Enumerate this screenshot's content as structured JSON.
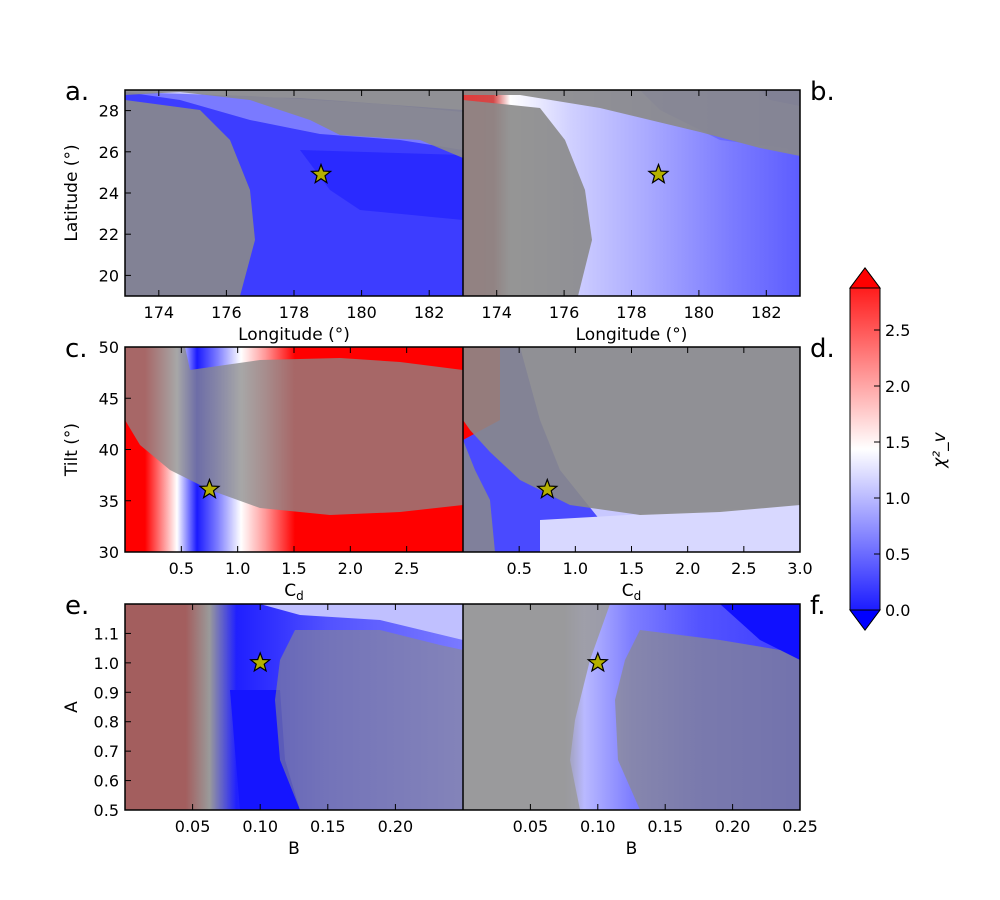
{
  "chart_data": [
    {
      "type": "heatmap",
      "panel": "a.",
      "xlabel": "Longitude (°)",
      "ylabel": "Latitude (°)",
      "xlim": [
        173,
        183
      ],
      "ylim": [
        19,
        29
      ],
      "xticks": [
        174,
        176,
        178,
        180,
        182
      ],
      "xtick_labels": [
        "174",
        "176",
        "178",
        "180",
        "182"
      ],
      "yticks": [
        20,
        22,
        24,
        26,
        28
      ],
      "ytick_labels": [
        "20",
        "22",
        "24",
        "26",
        "28"
      ],
      "marker": {
        "symbol": "star",
        "x": 178.8,
        "y": 24.9,
        "color": "#b5b000"
      }
    },
    {
      "type": "heatmap",
      "panel": "b.",
      "xlabel": "Longitude (°)",
      "ylabel": "",
      "xlim": [
        173,
        183
      ],
      "ylim": [
        19,
        29
      ],
      "xticks": [
        174,
        176,
        178,
        180,
        182
      ],
      "xtick_labels": [
        "174",
        "176",
        "178",
        "180",
        "182"
      ],
      "yticks": [],
      "ytick_labels": [],
      "marker": {
        "symbol": "star",
        "x": 178.8,
        "y": 24.9,
        "color": "#b5b000"
      }
    },
    {
      "type": "heatmap",
      "panel": "c.",
      "xlabel": "C_d",
      "ylabel": "Tilt (°)",
      "xlim": [
        0,
        3.0
      ],
      "ylim": [
        30,
        50
      ],
      "xticks": [
        0.5,
        1.0,
        1.5,
        2.0,
        2.5
      ],
      "xtick_labels": [
        "0.5",
        "1.0",
        "1.5",
        "2.0",
        "2.5"
      ],
      "yticks": [
        30,
        35,
        40,
        45,
        50
      ],
      "ytick_labels": [
        "30",
        "35",
        "40",
        "45",
        "50"
      ],
      "marker": {
        "symbol": "star",
        "x": 0.75,
        "y": 36.1,
        "color": "#b5b000"
      }
    },
    {
      "type": "heatmap",
      "panel": "d.",
      "xlabel": "C_d",
      "ylabel": "",
      "xlim": [
        0,
        3.0
      ],
      "ylim": [
        30,
        50
      ],
      "xticks": [
        0.5,
        1.0,
        1.5,
        2.0,
        2.5,
        3.0
      ],
      "xtick_labels": [
        "0.5",
        "1.0",
        "1.5",
        "2.0",
        "2.5",
        "3.0"
      ],
      "yticks": [],
      "ytick_labels": [],
      "marker": {
        "symbol": "star",
        "x": 0.75,
        "y": 36.1,
        "color": "#b5b000"
      }
    },
    {
      "type": "heatmap",
      "panel": "e.",
      "xlabel": "B",
      "ylabel": "A",
      "xlim": [
        0.0,
        0.25
      ],
      "ylim": [
        0.5,
        1.2
      ],
      "xticks": [
        0.05,
        0.1,
        0.15,
        0.2
      ],
      "xtick_labels": [
        "0.05",
        "0.10",
        "0.15",
        "0.20"
      ],
      "yticks": [
        0.5,
        0.6,
        0.7,
        0.8,
        0.9,
        1.0,
        1.1
      ],
      "ytick_labels": [
        "0.5",
        "0.6",
        "0.7",
        "0.8",
        "0.9",
        "1.0",
        "1.1"
      ],
      "marker": {
        "symbol": "star",
        "x": 0.1,
        "y": 1.0,
        "color": "#b5b000"
      }
    },
    {
      "type": "heatmap",
      "panel": "f.",
      "xlabel": "B",
      "ylabel": "",
      "xlim": [
        0.0,
        0.25
      ],
      "ylim": [
        0.5,
        1.2
      ],
      "xticks": [
        0.05,
        0.1,
        0.15,
        0.2,
        0.25
      ],
      "xtick_labels": [
        "0.05",
        "0.10",
        "0.15",
        "0.20",
        "0.25"
      ],
      "yticks": [],
      "ytick_labels": [],
      "marker": {
        "symbol": "star",
        "x": 0.1,
        "y": 1.0,
        "color": "#b5b000"
      }
    }
  ],
  "colorbar": {
    "label": "χ²_v",
    "min": 0.0,
    "max": 2.875,
    "ticks": [
      0.0,
      0.5,
      1.0,
      1.5,
      2.0,
      2.5
    ],
    "tick_labels": [
      "0.0",
      "0.5",
      "1.0",
      "1.5",
      "2.0",
      "2.5"
    ],
    "colors": {
      "low": "#0000ff",
      "mid": "#ffffff",
      "high": "#ff0000"
    }
  }
}
